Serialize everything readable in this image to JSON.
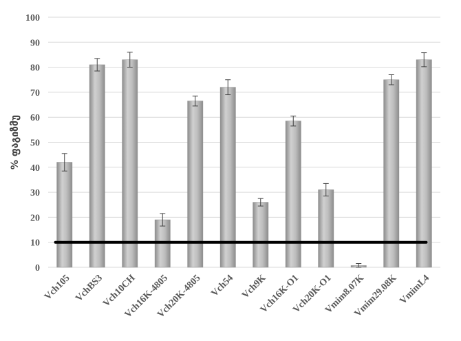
{
  "chart_data": {
    "type": "bar",
    "title": "",
    "xlabel": "",
    "ylabel": "% ფაგიზმუ",
    "ylim": [
      0,
      100
    ],
    "yticks": [
      0,
      10,
      20,
      30,
      40,
      50,
      60,
      70,
      80,
      90,
      100
    ],
    "grid": true,
    "legend": "none",
    "categories": [
      "Vch105",
      "VchBS3",
      "Vch10CH",
      "Vch16K-4805",
      "Vch20K-4805",
      "Vch54",
      "Vch9K",
      "Vch16K-O1",
      "Vch20K-O1",
      "Vmim8.07K",
      "Vmim29.08K",
      "VmimL4"
    ],
    "series": [
      {
        "values": [
          42,
          81,
          83,
          19,
          66.5,
          72,
          26,
          58.5,
          31,
          0.7,
          75,
          83
        ],
        "errors": [
          3.5,
          2.5,
          3,
          2.5,
          2,
          3,
          1.5,
          2,
          2.5,
          0.8,
          2,
          2.8
        ]
      }
    ],
    "reference_line": {
      "y": 10,
      "color": "#000000"
    },
    "colors": {
      "bar_fill": "#a6a6a6",
      "bar_highlight": "#d0d0d0",
      "error_bar": "#404040",
      "grid": "#d9d9d9"
    }
  }
}
